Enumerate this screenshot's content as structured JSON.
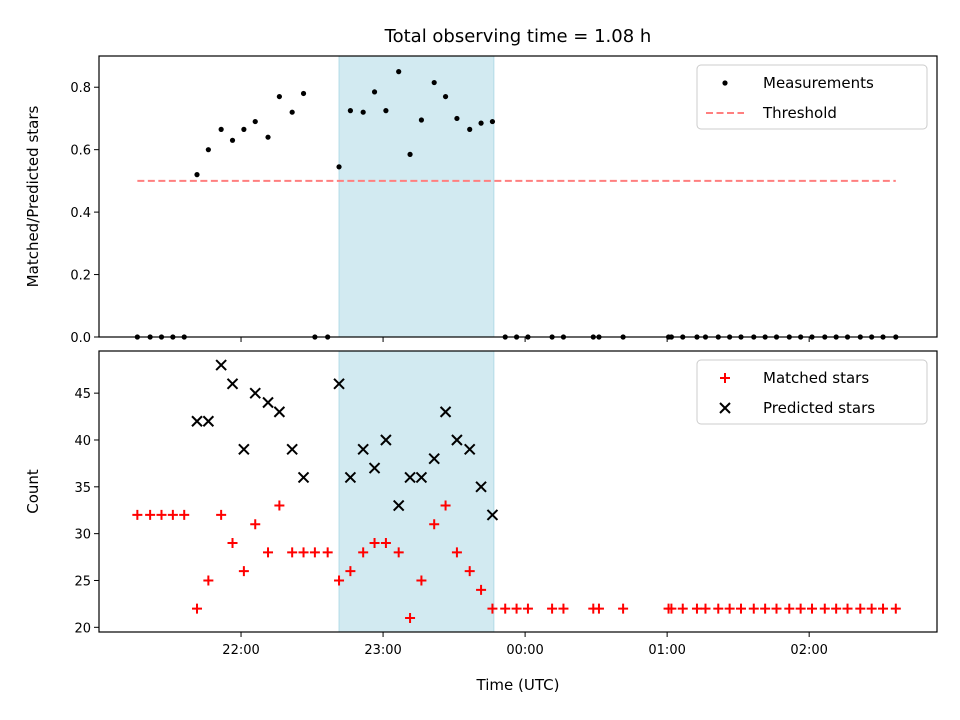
{
  "chart_data": {
    "title": "Total observing time = 1.08 h",
    "xlabel": "Time (UTC)",
    "x_ticks": [
      "22:00",
      "23:00",
      "00:00",
      "01:00",
      "02:00"
    ],
    "x_tick_hours": [
      22,
      23,
      24,
      25,
      26
    ],
    "xlim_hours": [
      21.0,
      26.9
    ],
    "shaded_window_hours": [
      22.69,
      23.78
    ],
    "shade_color": "#add8e6",
    "panels": [
      {
        "type": "scatter",
        "ylabel": "Matched/Predicted stars",
        "ylim": [
          0.0,
          0.9
        ],
        "yticks": [
          0.0,
          0.2,
          0.4,
          0.6,
          0.8
        ],
        "ytick_labels": [
          "0.0",
          "0.2",
          "0.4",
          "0.6",
          "0.8"
        ],
        "legend_position": "top-right",
        "series": [
          {
            "name": "Measurements",
            "marker": "dot",
            "color": "#000000",
            "x": [
              21.27,
              21.36,
              21.44,
              21.52,
              21.6,
              21.69,
              21.77,
              21.86,
              21.94,
              22.02,
              22.1,
              22.19,
              22.27,
              22.36,
              22.44,
              22.52,
              22.61,
              22.69,
              22.77,
              22.86,
              22.94,
              23.02,
              23.11,
              23.19,
              23.27,
              23.36,
              23.44,
              23.52,
              23.61,
              23.69,
              23.77,
              23.86,
              23.94,
              24.02,
              24.19,
              24.27,
              24.48,
              24.52,
              24.69,
              25.01,
              25.03,
              25.11,
              25.21,
              25.27,
              25.36,
              25.44,
              25.52,
              25.61,
              25.69,
              25.77,
              25.86,
              25.94,
              26.02,
              26.11,
              26.19,
              26.27,
              26.36,
              26.44,
              26.52,
              26.61
            ],
            "y": [
              0,
              0,
              0,
              0,
              0,
              0.52,
              0.6,
              0.665,
              0.63,
              0.665,
              0.69,
              0.64,
              0.77,
              0.72,
              0.78,
              0,
              0,
              0.545,
              0.725,
              0.72,
              0.785,
              0.725,
              0.85,
              0.585,
              0.695,
              0.815,
              0.77,
              0.7,
              0.665,
              0.685,
              0.69,
              0,
              0,
              0,
              0,
              0,
              0,
              0,
              0,
              0,
              0,
              0,
              0,
              0,
              0,
              0,
              0,
              0,
              0,
              0,
              0,
              0,
              0,
              0,
              0,
              0,
              0,
              0,
              0,
              0
            ]
          },
          {
            "name": "Threshold",
            "type": "line",
            "style": "dashed",
            "color": "#ff7f7f",
            "x": [
              21.27,
              26.61
            ],
            "y": [
              0.5,
              0.5
            ]
          }
        ]
      },
      {
        "type": "scatter",
        "ylabel": "Count",
        "ylim": [
          19.5,
          49.5
        ],
        "yticks": [
          20,
          25,
          30,
          35,
          40,
          45
        ],
        "ytick_labels": [
          "20",
          "25",
          "30",
          "35",
          "40",
          "45"
        ],
        "legend_position": "top-right",
        "series": [
          {
            "name": "Matched stars",
            "marker": "plus",
            "color": "#ff0000",
            "x": [
              21.27,
              21.36,
              21.44,
              21.52,
              21.6,
              21.69,
              21.77,
              21.86,
              21.94,
              22.02,
              22.1,
              22.19,
              22.27,
              22.36,
              22.44,
              22.52,
              22.61,
              22.69,
              22.77,
              22.86,
              22.94,
              23.02,
              23.11,
              23.19,
              23.27,
              23.36,
              23.44,
              23.52,
              23.61,
              23.69,
              23.77,
              23.86,
              23.94,
              24.02,
              24.19,
              24.27,
              24.48,
              24.52,
              24.69,
              25.01,
              25.03,
              25.11,
              25.21,
              25.27,
              25.36,
              25.44,
              25.52,
              25.61,
              25.69,
              25.77,
              25.86,
              25.94,
              26.02,
              26.11,
              26.19,
              26.27,
              26.36,
              26.44,
              26.52,
              26.61
            ],
            "y": [
              32,
              32,
              32,
              32,
              32,
              22,
              25,
              32,
              29,
              26,
              31,
              28,
              33,
              28,
              28,
              28,
              28,
              25,
              26,
              28,
              29,
              29,
              28,
              21,
              25,
              31,
              33,
              28,
              26,
              24,
              22,
              22,
              22,
              22,
              22,
              22,
              22,
              22,
              22,
              22,
              22,
              22,
              22,
              22,
              22,
              22,
              22,
              22,
              22,
              22,
              22,
              22,
              22,
              22,
              22,
              22,
              22,
              22,
              22,
              22
            ]
          },
          {
            "name": "Predicted stars",
            "marker": "x",
            "color": "#000000",
            "x": [
              21.69,
              21.77,
              21.86,
              21.94,
              22.02,
              22.1,
              22.19,
              22.27,
              22.36,
              22.44,
              22.69,
              22.77,
              22.86,
              22.94,
              23.02,
              23.11,
              23.19,
              23.27,
              23.36,
              23.44,
              23.52,
              23.61,
              23.69,
              23.77
            ],
            "y": [
              42,
              42,
              48,
              46,
              39,
              45,
              44,
              43,
              39,
              36,
              46,
              36,
              39,
              37,
              40,
              33,
              36,
              36,
              38,
              43,
              40,
              39,
              35,
              32
            ]
          }
        ]
      }
    ]
  }
}
